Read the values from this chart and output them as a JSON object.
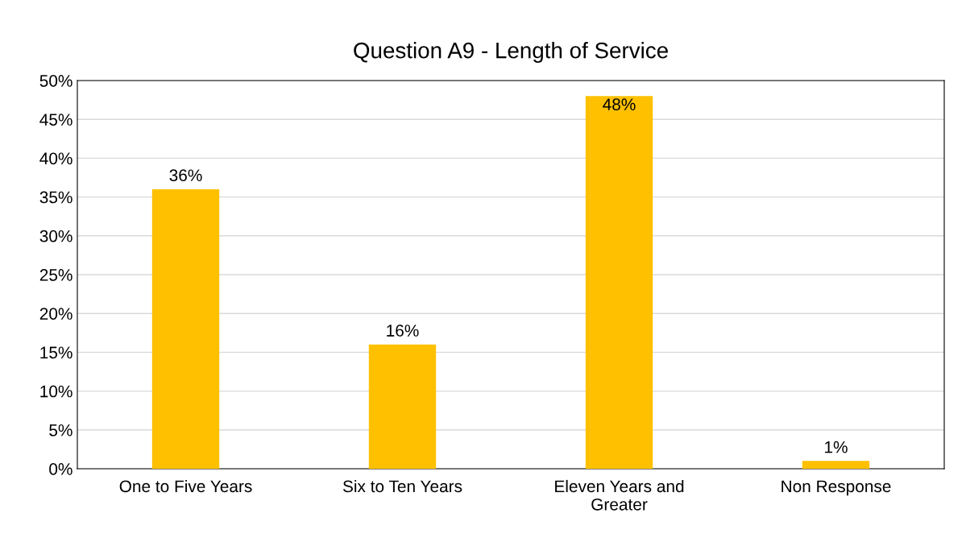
{
  "chart_data": {
    "type": "bar",
    "title": "Question A9 - Length of Service",
    "categories": [
      "One to Five Years",
      "Six to Ten Years",
      "Eleven Years and\nGreater",
      "Non Response"
    ],
    "values": [
      36,
      16,
      48,
      1
    ],
    "color": "#ffc000",
    "data_labels": true,
    "value_labels": [
      "36%",
      "16%",
      "48%",
      "1%"
    ],
    "ylim": [
      0,
      50
    ],
    "yticks": [
      {
        "value": 0,
        "label": "0%"
      },
      {
        "value": 5,
        "label": "5%"
      },
      {
        "value": 10,
        "label": "10%"
      },
      {
        "value": 15,
        "label": "15%"
      },
      {
        "value": 20,
        "label": "20%"
      },
      {
        "value": 25,
        "label": "25%"
      },
      {
        "value": 30,
        "label": "30%"
      },
      {
        "value": 35,
        "label": "35%"
      },
      {
        "value": 40,
        "label": "40%"
      },
      {
        "value": 45,
        "label": "45%"
      },
      {
        "value": 50,
        "label": "50%"
      }
    ],
    "grid": "y",
    "legend": false
  }
}
